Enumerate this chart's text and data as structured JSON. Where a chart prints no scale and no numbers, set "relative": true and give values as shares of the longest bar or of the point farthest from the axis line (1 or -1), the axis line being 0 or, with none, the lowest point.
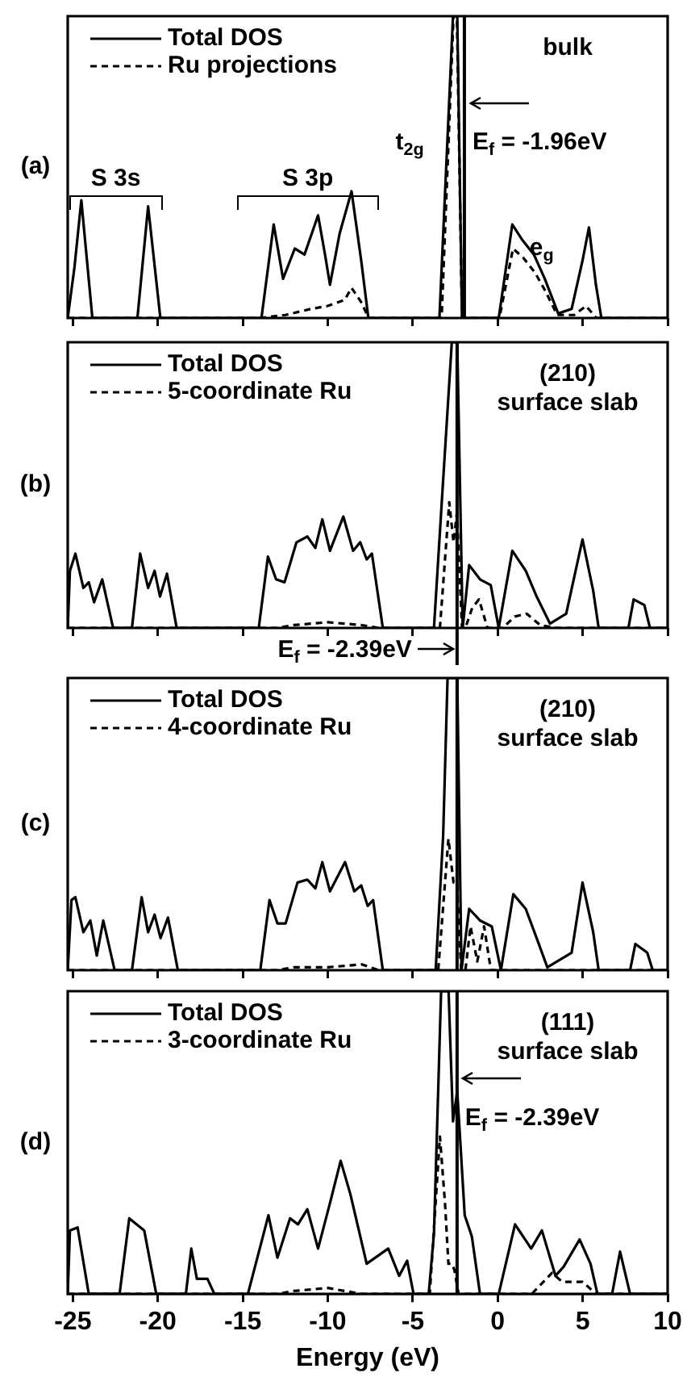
{
  "chart_data": [
    {
      "type": "line",
      "relative": true,
      "ylabel": "(a)",
      "xlim": [
        -25.3,
        10
      ],
      "xticks": [
        -25,
        -20,
        -15,
        -10,
        -5,
        0,
        5,
        10
      ],
      "tick_labels": false,
      "legend": "top left",
      "grid": false,
      "series": [
        {
          "name": "Total DOS",
          "color": "#000000",
          "line_style": "solid",
          "x": [
            -25.3,
            -24.9,
            -24.5,
            -23.85,
            -21.2,
            -20.57,
            -19.85,
            -13.9,
            -13.18,
            -12.63,
            -11.94,
            -11.37,
            -10.57,
            -10.16,
            -9.87,
            -9.3,
            -8.6,
            -8.03,
            -7.61,
            -3.43,
            -2.63,
            -2.38,
            -2.1,
            0.06,
            0.86,
            1.43,
            2.13,
            2.77,
            3.56,
            4.35,
            4.99,
            5.37,
            5.78,
            6.1,
            10
          ],
          "values": [
            0,
            0.17,
            0.39,
            0,
            0,
            0.37,
            0,
            0,
            0.31,
            0.13,
            0.23,
            0.21,
            0.34,
            0.21,
            0.11,
            0.28,
            0.42,
            0.19,
            0,
            0,
            1,
            1,
            0,
            0,
            0.31,
            0.26,
            0.21,
            0.13,
            0.015,
            0.03,
            0.19,
            0.3,
            0.11,
            0,
            0
          ]
        },
        {
          "name": "Ru projections",
          "color": "#000000",
          "line_style": "dashed",
          "x": [
            -25.3,
            -14,
            -12.5,
            -11,
            -10,
            -9,
            -8.6,
            -8,
            -7.6,
            -3.3,
            -2.6,
            -2.4,
            -2.1,
            0.1,
            0.9,
            1.5,
            2.2,
            2.8,
            3.5,
            4.5,
            5.2,
            5.8,
            10
          ],
          "values": [
            0,
            0,
            0.01,
            0.03,
            0.04,
            0.06,
            0.1,
            0.05,
            0,
            0,
            1,
            1,
            0,
            0,
            0.23,
            0.2,
            0.15,
            0.09,
            0.01,
            0.01,
            0.04,
            0,
            0
          ]
        }
      ],
      "ref_lines": [
        {
          "axis": "x",
          "value": -1.96,
          "label": "E$_{f}$ = -1.96eV",
          "color": "#000000"
        }
      ],
      "annotations": [
        "S 3s",
        "S 3p",
        "t$_{2g}$",
        "e$_{g}$",
        "bulk"
      ]
    },
    {
      "type": "line",
      "relative": true,
      "ylabel": "(b)",
      "xlim": [
        -25.3,
        10
      ],
      "xticks": [
        -25,
        -20,
        -15,
        -10,
        -5,
        0,
        5,
        10
      ],
      "tick_labels": false,
      "legend": "top left",
      "grid": false,
      "series": [
        {
          "name": "Total DOS",
          "color": "#000000",
          "line_style": "solid",
          "x": [
            -25.3,
            -25.17,
            -24.85,
            -24.38,
            -24.06,
            -23.75,
            -23.27,
            -22.63,
            -21.52,
            -21.04,
            -20.57,
            -20.19,
            -19.87,
            -19.46,
            -18.89,
            -14.06,
            -13.52,
            -13.04,
            -12.54,
            -11.84,
            -11.2,
            -10.73,
            -10.32,
            -9.87,
            -9.08,
            -8.51,
            -8.09,
            -7.71,
            -7.4,
            -6.76,
            -3.75,
            -3.27,
            -2.7,
            -2.38,
            -2.06,
            -1.68,
            -1.04,
            -0.41,
            0.06,
            0.86,
            1.65,
            2.29,
            3.08,
            4.03,
            4.99,
            5.62,
            5.94,
            7.69,
            8,
            8.63,
            8.96,
            10
          ],
          "values": [
            0,
            0.2,
            0.26,
            0.14,
            0.16,
            0.09,
            0.17,
            0,
            0,
            0.26,
            0.14,
            0.2,
            0.11,
            0.19,
            0,
            0,
            0.25,
            0.17,
            0.16,
            0.3,
            0.32,
            0.28,
            0.38,
            0.27,
            0.39,
            0.27,
            0.3,
            0.24,
            0.26,
            0,
            0,
            0.46,
            1,
            1,
            0,
            0.22,
            0.17,
            0.15,
            0,
            0.27,
            0.2,
            0.11,
            0.015,
            0.05,
            0.31,
            0.13,
            0,
            0,
            0.1,
            0.08,
            0,
            0
          ]
        },
        {
          "name": "5-coordinate Ru",
          "color": "#000000",
          "line_style": "dashed",
          "x": [
            -25.3,
            -13,
            -12,
            -10,
            -8,
            -7,
            -3.4,
            -2.85,
            -2.6,
            -2.4,
            -2.1,
            -1.9,
            -1.5,
            -1.1,
            -0.6,
            0.3,
            1,
            1.7,
            2.5,
            3.5,
            10
          ],
          "values": [
            0,
            0,
            0.01,
            0.02,
            0.01,
            0,
            0,
            0.44,
            0.3,
            0.4,
            0,
            0,
            0.07,
            0.1,
            0,
            0,
            0.04,
            0.05,
            0.01,
            0,
            0
          ]
        }
      ],
      "ref_lines": [
        {
          "axis": "x",
          "value": -2.39,
          "label": "E$_{f}$ = -2.39eV",
          "color": "#000000"
        }
      ],
      "annotations": [
        "(210)",
        "surface slab"
      ]
    },
    {
      "type": "line",
      "relative": true,
      "ylabel": "(c)",
      "xlim": [
        -25.3,
        10
      ],
      "xticks": [
        -25,
        -20,
        -15,
        -10,
        -5,
        0,
        5,
        10
      ],
      "tick_labels": false,
      "legend": "top left",
      "grid": false,
      "series": [
        {
          "name": "Total DOS",
          "color": "#000000",
          "line_style": "solid",
          "x": [
            -25.3,
            -25.08,
            -24.85,
            -24.38,
            -23.97,
            -23.59,
            -23.21,
            -22.54,
            -21.52,
            -20.95,
            -20.57,
            -20.19,
            -19.84,
            -19.4,
            -18.82,
            -13.97,
            -13.43,
            -12.96,
            -12.48,
            -11.78,
            -11.2,
            -10.73,
            -10.32,
            -9.87,
            -8.98,
            -8.44,
            -8.03,
            -7.65,
            -7.33,
            -6.76,
            -3.65,
            -3.21,
            -2.95,
            -2.38,
            -2.13,
            -1.68,
            -1.04,
            -0.35,
            0.19,
            0.92,
            1.65,
            2.29,
            2.92,
            4.35,
            4.99,
            5.62,
            5.94,
            7.79,
            8.1,
            8.8,
            9.12,
            10
          ],
          "values": [
            0,
            0.24,
            0.25,
            0.13,
            0.17,
            0.05,
            0.17,
            0,
            0,
            0.25,
            0.13,
            0.19,
            0.11,
            0.18,
            0,
            0,
            0.24,
            0.16,
            0.16,
            0.3,
            0.31,
            0.28,
            0.37,
            0.27,
            0.37,
            0.27,
            0.29,
            0.22,
            0.24,
            0,
            0,
            0.46,
            1,
            1,
            0,
            0.21,
            0.17,
            0.15,
            0,
            0.26,
            0.21,
            0.11,
            0.01,
            0.06,
            0.3,
            0.13,
            0,
            0,
            0.09,
            0.06,
            0,
            0
          ]
        },
        {
          "name": "4-coordinate Ru",
          "color": "#000000",
          "line_style": "dashed",
          "x": [
            -25.3,
            -13,
            -12,
            -10,
            -8,
            -7,
            -3.5,
            -2.9,
            -2.6,
            -2.4,
            -2.15,
            -1.9,
            -1.6,
            -1.2,
            -0.8,
            -0.4,
            10
          ],
          "values": [
            0,
            0,
            0.01,
            0.01,
            0.02,
            0,
            0,
            0.45,
            0.3,
            0.3,
            0,
            0,
            0.15,
            0.03,
            0.15,
            0,
            0
          ]
        }
      ],
      "ref_lines": [
        {
          "axis": "x",
          "value": -2.39,
          "color": "#000000"
        }
      ],
      "annotations": [
        "(210)",
        "surface slab"
      ]
    },
    {
      "type": "line",
      "relative": true,
      "ylabel": "(d)",
      "xlabel": "Energy (eV)",
      "xlim": [
        -25.3,
        10
      ],
      "xticks": [
        -25,
        -20,
        -15,
        -10,
        -5,
        0,
        5,
        10
      ],
      "tick_labels": "x",
      "legend": "top left",
      "grid": false,
      "series": [
        {
          "name": "Total DOS",
          "color": "#000000",
          "line_style": "solid",
          "x": [
            -25.3,
            -25.17,
            -24.72,
            -24.06,
            -22.25,
            -21.68,
            -20.8,
            -20.09,
            -18.35,
            -18.03,
            -17.7,
            -17.08,
            -16.67,
            -14.7,
            -13.49,
            -12.96,
            -12.22,
            -11.75,
            -11.2,
            -10.57,
            -9.87,
            -9.24,
            -8.67,
            -7.71,
            -6.44,
            -5.8,
            -5.33,
            -4.95,
            -4.06,
            -3.75,
            -3.33,
            -2.89,
            -2.63,
            -2.38,
            -1.94,
            -1.52,
            -1.04,
            0.06,
            1.02,
            1.97,
            2.6,
            3.4,
            3.88,
            4.82,
            5.46,
            5.87,
            6.73,
            7.2,
            7.79,
            10
          ],
          "values": [
            0,
            0.21,
            0.22,
            0,
            0,
            0.25,
            0.21,
            0,
            0,
            0.15,
            0.05,
            0.05,
            0,
            0,
            0.26,
            0.12,
            0.25,
            0.23,
            0.28,
            0.15,
            0.3,
            0.44,
            0.33,
            0.1,
            0.15,
            0.06,
            0.11,
            0,
            0,
            0.2,
            1,
            1,
            0.57,
            0.67,
            0.26,
            0.19,
            0,
            0,
            0.23,
            0.15,
            0.21,
            0.06,
            0.09,
            0.18,
            0.1,
            0,
            0,
            0.14,
            0,
            0
          ]
        },
        {
          "name": "3-coordinate Ru",
          "color": "#000000",
          "line_style": "dashed",
          "x": [
            -25.3,
            -13,
            -12,
            -10,
            -9,
            -8,
            -4,
            -3.4,
            -3.1,
            -2.9,
            -2.7,
            -2.55,
            -2.3,
            0,
            2,
            3.2,
            3.8,
            5,
            5.8,
            10
          ],
          "values": [
            0,
            0,
            0.01,
            0.02,
            0.01,
            0,
            0,
            0.52,
            0.3,
            0.1,
            0.1,
            0.08,
            0,
            0,
            0,
            0.07,
            0.04,
            0.04,
            0,
            0
          ]
        }
      ],
      "ref_lines": [
        {
          "axis": "x",
          "value": -2.39,
          "label": "E$_{f}$ = -2.39eV",
          "color": "#000000"
        }
      ],
      "annotations": [
        "(111)",
        "surface slab"
      ]
    }
  ]
}
